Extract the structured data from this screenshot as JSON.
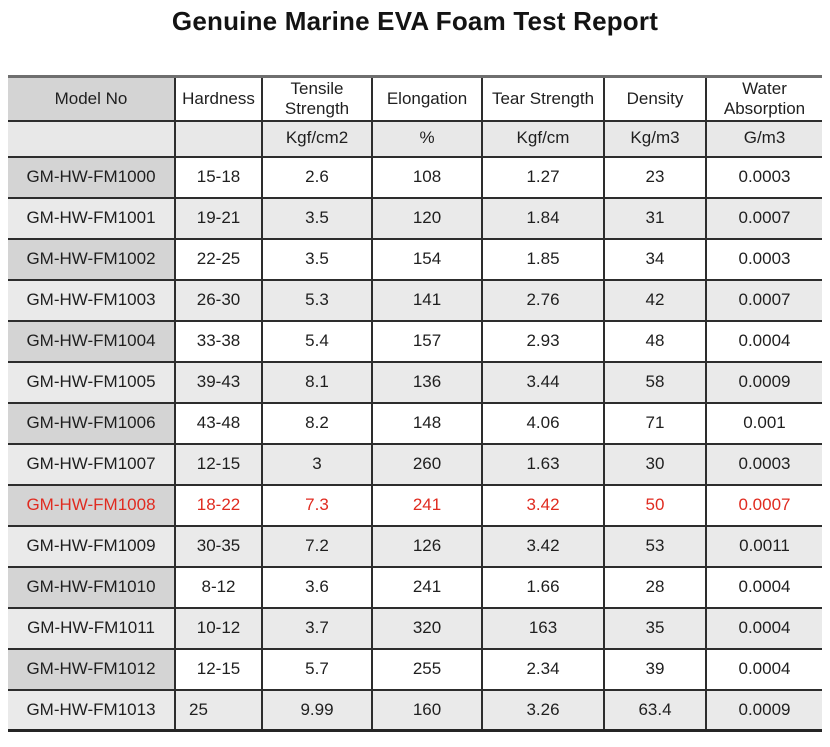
{
  "title": "Genuine Marine EVA Foam Test Report",
  "colors": {
    "highlight_red": "#e02b20",
    "model_cell_gray": "#d4d4d4",
    "alt_row_gray": "#eaeaea",
    "border_dark": "#2d2d2d"
  },
  "table": {
    "headers": [
      "Model No",
      "Hardness",
      "Tensile Strength",
      "Elongation",
      "Tear Strength",
      "Density",
      "Water Absorption"
    ],
    "units": [
      "",
      "",
      "Kgf/cm2",
      "%",
      "Kgf/cm",
      "Kg/m3",
      "G/m3"
    ],
    "rows": [
      {
        "model": "GM-HW-FM1000",
        "hardness": "15-18",
        "tensile": "2.6",
        "elongation": "108",
        "tear": "1.27",
        "density": "23",
        "water": "0.0003",
        "highlight": false
      },
      {
        "model": "GM-HW-FM1001",
        "hardness": "19-21",
        "tensile": "3.5",
        "elongation": "120",
        "tear": "1.84",
        "density": "31",
        "water": "0.0007",
        "highlight": false
      },
      {
        "model": "GM-HW-FM1002",
        "hardness": "22-25",
        "tensile": "3.5",
        "elongation": "154",
        "tear": "1.85",
        "density": "34",
        "water": "0.0003",
        "highlight": false
      },
      {
        "model": "GM-HW-FM1003",
        "hardness": "26-30",
        "tensile": "5.3",
        "elongation": "141",
        "tear": "2.76",
        "density": "42",
        "water": "0.0007",
        "highlight": false
      },
      {
        "model": "GM-HW-FM1004",
        "hardness": "33-38",
        "tensile": "5.4",
        "elongation": "157",
        "tear": "2.93",
        "density": "48",
        "water": "0.0004",
        "highlight": false
      },
      {
        "model": "GM-HW-FM1005",
        "hardness": "39-43",
        "tensile": "8.1",
        "elongation": "136",
        "tear": "3.44",
        "density": "58",
        "water": "0.0009",
        "highlight": false
      },
      {
        "model": "GM-HW-FM1006",
        "hardness": "43-48",
        "tensile": "8.2",
        "elongation": "148",
        "tear": "4.06",
        "density": "71",
        "water": "0.001",
        "highlight": false
      },
      {
        "model": "GM-HW-FM1007",
        "hardness": "12-15",
        "tensile": "3",
        "elongation": "260",
        "tear": "1.63",
        "density": "30",
        "water": "0.0003",
        "highlight": false
      },
      {
        "model": "GM-HW-FM1008",
        "hardness": "18-22",
        "tensile": "7.3",
        "elongation": "241",
        "tear": "3.42",
        "density": "50",
        "water": "0.0007",
        "highlight": true
      },
      {
        "model": "GM-HW-FM1009",
        "hardness": "30-35",
        "tensile": "7.2",
        "elongation": "126",
        "tear": "3.42",
        "density": "53",
        "water": "0.0011",
        "highlight": false
      },
      {
        "model": "GM-HW-FM1010",
        "hardness": "8-12",
        "tensile": "3.6",
        "elongation": "241",
        "tear": "1.66",
        "density": "28",
        "water": "0.0004",
        "highlight": false
      },
      {
        "model": "GM-HW-FM1011",
        "hardness": "10-12",
        "tensile": "3.7",
        "elongation": "320",
        "tear": "163",
        "density": "35",
        "water": "0.0004",
        "highlight": false
      },
      {
        "model": "GM-HW-FM1012",
        "hardness": "12-15",
        "tensile": "5.7",
        "elongation": "255",
        "tear": "2.34",
        "density": "39",
        "water": "0.0004",
        "highlight": false
      },
      {
        "model": "GM-HW-FM1013",
        "hardness": "25",
        "tensile": "9.99",
        "elongation": "160",
        "tear": "3.26",
        "density": "63.4",
        "water": "0.0009",
        "highlight": false
      }
    ]
  }
}
